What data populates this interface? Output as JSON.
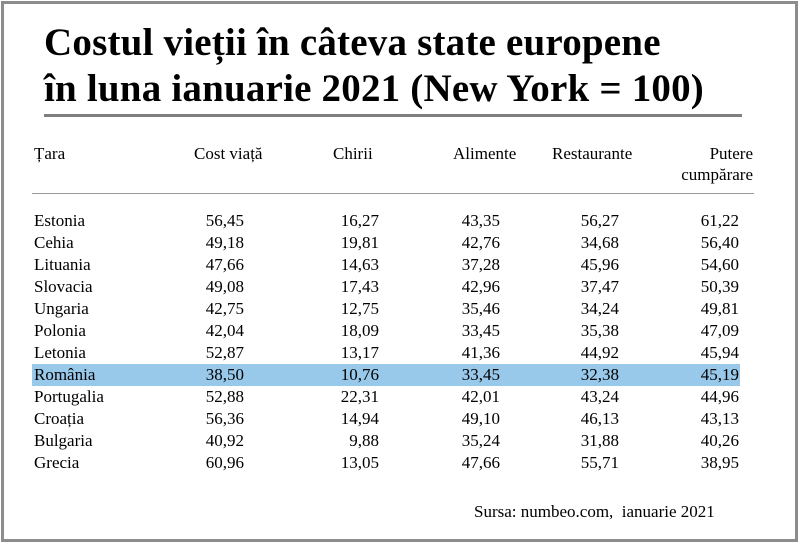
{
  "title": {
    "line1": "Costul vieții în câteva state europene",
    "line2": "în luna ianuarie 2021 (New York = 100)"
  },
  "headers": {
    "country": "Țara",
    "cost": "Cost viață",
    "rent": "Chirii",
    "food": "Alimente",
    "restaurants": "Restaurante",
    "power_line1": "Putere",
    "power_line2": "cumpărare"
  },
  "rows": [
    {
      "country": "Estonia",
      "cost": "56,45",
      "rent": "16,27",
      "food": "43,35",
      "restaurants": "56,27",
      "power": "61,22"
    },
    {
      "country": "Cehia",
      "cost": "49,18",
      "rent": "19,81",
      "food": "42,76",
      "restaurants": "34,68",
      "power": "56,40"
    },
    {
      "country": "Lituania",
      "cost": "47,66",
      "rent": "14,63",
      "food": "37,28",
      "restaurants": "45,96",
      "power": "54,60"
    },
    {
      "country": "Slovacia",
      "cost": "49,08",
      "rent": "17,43",
      "food": "42,96",
      "restaurants": "37,47",
      "power": "50,39"
    },
    {
      "country": "Ungaria",
      "cost": "42,75",
      "rent": "12,75",
      "food": "35,46",
      "restaurants": "34,24",
      "power": "49,81"
    },
    {
      "country": "Polonia",
      "cost": "42,04",
      "rent": "18,09",
      "food": "33,45",
      "restaurants": "35,38",
      "power": "47,09"
    },
    {
      "country": "Letonia",
      "cost": "52,87",
      "rent": "13,17",
      "food": "41,36",
      "restaurants": "44,92",
      "power": "45,94"
    },
    {
      "country": "România",
      "cost": "38,50",
      "rent": "10,76",
      "food": "33,45",
      "restaurants": "32,38",
      "power": "45,19"
    },
    {
      "country": "Portugalia",
      "cost": "52,88",
      "rent": "22,31",
      "food": "42,01",
      "restaurants": "43,24",
      "power": "44,96"
    },
    {
      "country": "Croația",
      "cost": "56,36",
      "rent": "14,94",
      "food": "49,10",
      "restaurants": "46,13",
      "power": "43,13"
    },
    {
      "country": "Bulgaria",
      "cost": "40,92",
      "rent": "9,88",
      "food": "35,24",
      "restaurants": "31,88",
      "power": "40,26"
    },
    {
      "country": "Grecia",
      "cost": "60,96",
      "rent": "13,05",
      "food": "47,66",
      "restaurants": "55,71",
      "power": "38,95"
    }
  ],
  "highlighted_country": "România",
  "highlight_color": "#99c9ea",
  "source": "Sursa: numbeo.com,  ianuarie 2021"
}
